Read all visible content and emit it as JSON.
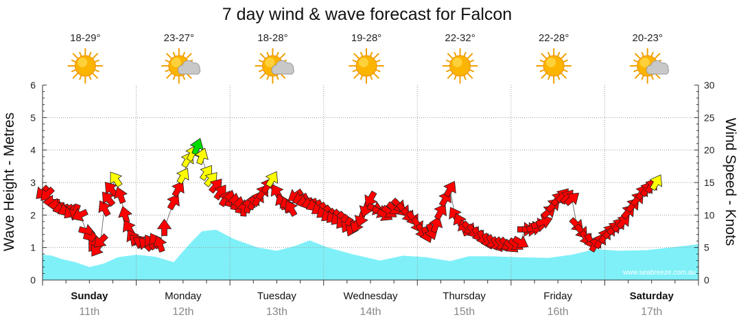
{
  "chart_data": {
    "type": "line",
    "title": "7 day wind & wave forecast for Falcon",
    "left_axis_label": "Wave Height - Metres",
    "right_axis_label": "Wind Speed - Knots",
    "left_ylim": [
      0,
      6
    ],
    "right_ylim": [
      0,
      30
    ],
    "left_ticks": [
      "0",
      "1",
      "2",
      "3",
      "4",
      "5",
      "6"
    ],
    "right_ticks": [
      "0",
      "5",
      "10",
      "15",
      "20",
      "25",
      "30"
    ],
    "grid": true,
    "credit": "www.seabreeze.com.au",
    "days": [
      {
        "name": "Sunday",
        "date": "11th",
        "temp": "18-29°",
        "icon": "sun-icon",
        "bold": true
      },
      {
        "name": "Monday",
        "date": "12th",
        "temp": "23-27°",
        "icon": "sun-cloud-icon",
        "bold": false
      },
      {
        "name": "Tuesday",
        "date": "13th",
        "temp": "18-28°",
        "icon": "sun-cloud-icon",
        "bold": false
      },
      {
        "name": "Wednesday",
        "date": "14th",
        "temp": "19-28°",
        "icon": "sun-icon",
        "bold": false
      },
      {
        "name": "Thursday",
        "date": "15th",
        "temp": "22-32°",
        "icon": "sun-icon",
        "bold": false
      },
      {
        "name": "Friday",
        "date": "16th",
        "temp": "22-28°",
        "icon": "sun-icon",
        "bold": false
      },
      {
        "name": "Saturday",
        "date": "17th",
        "temp": "20-23°",
        "icon": "sun-cloud-icon",
        "bold": true
      }
    ],
    "wave_series": {
      "name": "Wave Height",
      "color": "#7ff0f8",
      "x": [
        0,
        0.1,
        0.2,
        0.35,
        0.5,
        0.65,
        0.8,
        1.0,
        1.2,
        1.4,
        1.55,
        1.7,
        1.85,
        2.05,
        2.3,
        2.5,
        2.7,
        2.85,
        3.05,
        3.3,
        3.6,
        3.85,
        4.1,
        4.35,
        4.55,
        4.8,
        5.1,
        5.4,
        5.65,
        5.9,
        6.15,
        6.45,
        6.75,
        7.0
      ],
      "y": [
        0.78,
        0.75,
        0.65,
        0.55,
        0.4,
        0.5,
        0.7,
        0.78,
        0.72,
        0.55,
        1.05,
        1.5,
        1.55,
        1.25,
        1.0,
        0.9,
        1.05,
        1.22,
        1.0,
        0.8,
        0.6,
        0.75,
        0.7,
        0.58,
        0.73,
        0.73,
        0.7,
        0.68,
        0.78,
        0.95,
        0.9,
        0.92,
        1.02,
        1.1
      ]
    },
    "wind_series": {
      "name": "Wind Speed",
      "arrow_colors": {
        "under_15": "#ff0000",
        "15_to_20": "#ffff00",
        "over_20": "#00dd00"
      },
      "points": [
        [
          0.0,
          13.5,
          225
        ],
        [
          0.05,
          13.2,
          225
        ],
        [
          0.1,
          12.0,
          270
        ],
        [
          0.15,
          11.5,
          270
        ],
        [
          0.2,
          11.0,
          255
        ],
        [
          0.25,
          10.8,
          245
        ],
        [
          0.3,
          10.5,
          225
        ],
        [
          0.35,
          10.5,
          200
        ],
        [
          0.4,
          10.0,
          245
        ],
        [
          0.47,
          7.5,
          105
        ],
        [
          0.52,
          6.5,
          105
        ],
        [
          0.55,
          5.5,
          215
        ],
        [
          0.58,
          4.8,
          215
        ],
        [
          0.62,
          6.0,
          225
        ],
        [
          0.66,
          11.0,
          330
        ],
        [
          0.7,
          12.5,
          320
        ],
        [
          0.73,
          14.0,
          320
        ],
        [
          0.78,
          15.5,
          325
        ],
        [
          0.83,
          13.0,
          340
        ],
        [
          0.88,
          10.0,
          345
        ],
        [
          0.92,
          8.0,
          330
        ],
        [
          0.96,
          6.5,
          330
        ],
        [
          1.0,
          6.0,
          315
        ],
        [
          1.05,
          5.8,
          300
        ],
        [
          1.1,
          5.5,
          315
        ],
        [
          1.15,
          5.8,
          325
        ],
        [
          1.2,
          6.0,
          330
        ],
        [
          1.25,
          5.5,
          340
        ],
        [
          1.3,
          8.0,
          0
        ],
        [
          1.4,
          12.0,
          30
        ],
        [
          1.45,
          14.0,
          30
        ],
        [
          1.5,
          16.0,
          30
        ],
        [
          1.55,
          18.5,
          30
        ],
        [
          1.6,
          19.5,
          25
        ],
        [
          1.65,
          20.5,
          20
        ],
        [
          1.7,
          19.0,
          20
        ],
        [
          1.75,
          16.5,
          35
        ],
        [
          1.8,
          15.5,
          40
        ],
        [
          1.85,
          14.5,
          40
        ],
        [
          1.9,
          13.5,
          35
        ],
        [
          1.95,
          12.5,
          30
        ],
        [
          2.0,
          12.5,
          15
        ],
        [
          2.05,
          12.0,
          10
        ],
        [
          2.1,
          11.5,
          10
        ],
        [
          2.15,
          11.0,
          5
        ],
        [
          2.2,
          11.5,
          15
        ],
        [
          2.25,
          12.0,
          25
        ],
        [
          2.3,
          12.5,
          30
        ],
        [
          2.35,
          13.5,
          35
        ],
        [
          2.4,
          14.5,
          30
        ],
        [
          2.45,
          15.5,
          30
        ],
        [
          2.5,
          13.5,
          330
        ],
        [
          2.55,
          12.0,
          335
        ],
        [
          2.6,
          11.5,
          340
        ],
        [
          2.65,
          11.0,
          330
        ],
        [
          2.7,
          13.0,
          235
        ],
        [
          2.75,
          12.5,
          245
        ],
        [
          2.8,
          12.0,
          255
        ],
        [
          2.85,
          11.8,
          250
        ],
        [
          2.9,
          11.5,
          245
        ],
        [
          2.95,
          11.0,
          235
        ],
        [
          3.0,
          10.5,
          230
        ],
        [
          3.05,
          10.0,
          230
        ],
        [
          3.1,
          9.8,
          225
        ],
        [
          3.15,
          9.5,
          225
        ],
        [
          3.2,
          9.0,
          220
        ],
        [
          3.25,
          8.5,
          210
        ],
        [
          3.3,
          8.0,
          205
        ],
        [
          3.35,
          8.5,
          205
        ],
        [
          3.4,
          9.5,
          200
        ],
        [
          3.45,
          11.0,
          200
        ],
        [
          3.5,
          12.5,
          210
        ],
        [
          3.55,
          11.0,
          110
        ],
        [
          3.6,
          10.5,
          115
        ],
        [
          3.65,
          10.0,
          120
        ],
        [
          3.7,
          10.5,
          125
        ],
        [
          3.75,
          11.0,
          130
        ],
        [
          3.8,
          11.5,
          135
        ],
        [
          3.85,
          10.8,
          140
        ],
        [
          3.9,
          10.0,
          140
        ],
        [
          3.95,
          9.5,
          145
        ],
        [
          4.0,
          8.5,
          150
        ],
        [
          4.05,
          7.5,
          150
        ],
        [
          4.1,
          7.0,
          155
        ],
        [
          4.15,
          7.5,
          160
        ],
        [
          4.2,
          8.5,
          20
        ],
        [
          4.25,
          10.5,
          30
        ],
        [
          4.3,
          12.5,
          30
        ],
        [
          4.35,
          14.0,
          30
        ],
        [
          4.4,
          10.0,
          330
        ],
        [
          4.45,
          9.0,
          335
        ],
        [
          4.5,
          8.0,
          340
        ],
        [
          4.55,
          8.0,
          135
        ],
        [
          4.6,
          7.5,
          140
        ],
        [
          4.65,
          7.0,
          145
        ],
        [
          4.7,
          6.5,
          150
        ],
        [
          4.75,
          6.0,
          155
        ],
        [
          4.8,
          5.8,
          150
        ],
        [
          4.85,
          5.5,
          145
        ],
        [
          4.9,
          5.5,
          140
        ],
        [
          4.95,
          5.5,
          135
        ],
        [
          5.0,
          5.2,
          130
        ],
        [
          5.05,
          5.5,
          125
        ],
        [
          5.1,
          5.8,
          120
        ],
        [
          5.15,
          7.8,
          90
        ],
        [
          5.2,
          7.8,
          90
        ],
        [
          5.25,
          8.0,
          80
        ],
        [
          5.3,
          8.5,
          80
        ],
        [
          5.35,
          9.0,
          70
        ],
        [
          5.4,
          10.5,
          50
        ],
        [
          5.45,
          11.5,
          45
        ],
        [
          5.5,
          12.5,
          40
        ],
        [
          5.55,
          13.0,
          40
        ],
        [
          5.6,
          12.8,
          40
        ],
        [
          5.65,
          12.5,
          50
        ],
        [
          5.7,
          8.5,
          135
        ],
        [
          5.75,
          7.5,
          140
        ],
        [
          5.8,
          6.5,
          145
        ],
        [
          5.85,
          6.0,
          150
        ],
        [
          5.9,
          5.5,
          30
        ],
        [
          5.95,
          6.0,
          30
        ],
        [
          6.0,
          6.8,
          30
        ],
        [
          6.05,
          7.5,
          40
        ],
        [
          6.1,
          8.0,
          45
        ],
        [
          6.15,
          8.5,
          40
        ],
        [
          6.2,
          9.0,
          40
        ],
        [
          6.25,
          10.5,
          40
        ],
        [
          6.3,
          11.5,
          40
        ],
        [
          6.35,
          12.5,
          40
        ],
        [
          6.4,
          13.5,
          35
        ],
        [
          6.45,
          14.0,
          35
        ],
        [
          6.5,
          14.5,
          35
        ],
        [
          6.55,
          15.0,
          30
        ]
      ]
    }
  }
}
